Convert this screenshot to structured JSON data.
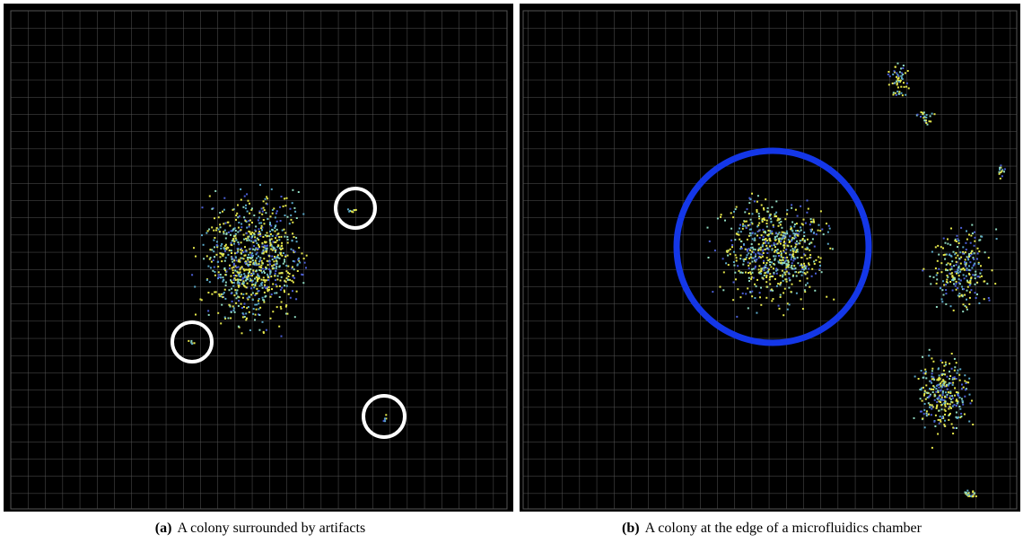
{
  "panels": [
    {
      "label": "(a)",
      "caption": "A colony surrounded by artifacts"
    },
    {
      "label": "(b)",
      "caption": "A colony at the edge of a microfluidics chamber"
    }
  ]
}
